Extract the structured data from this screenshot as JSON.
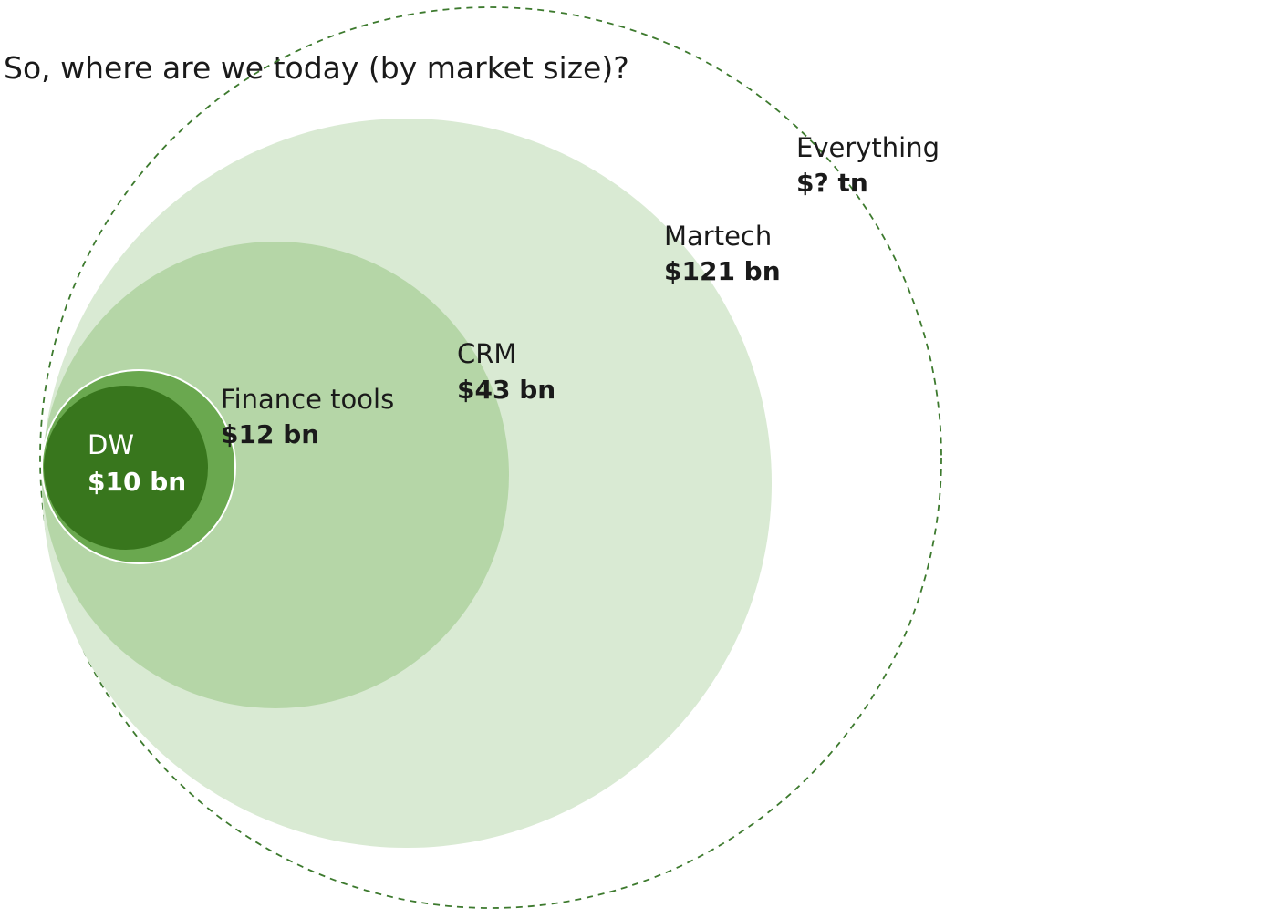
{
  "title": "So, where are we today (by market size)?",
  "markets": [
    {
      "name": "Everything",
      "value": "$? tn",
      "fill": "none",
      "stroke": "#3d7a2e",
      "dashed": true
    },
    {
      "name": "Martech",
      "value": "$121 bn",
      "fill": "#d9ead3",
      "stroke": "none"
    },
    {
      "name": "CRM",
      "value": "$43 bn",
      "fill": "#b5d6a7",
      "stroke": "none"
    },
    {
      "name": "Finance tools",
      "value": "$12 bn",
      "fill": "#6aa84f",
      "stroke": "#ffffff"
    },
    {
      "name": "DW",
      "value": "$10 bn",
      "fill": "#38761d",
      "stroke": "none",
      "light_text": true
    }
  ]
}
